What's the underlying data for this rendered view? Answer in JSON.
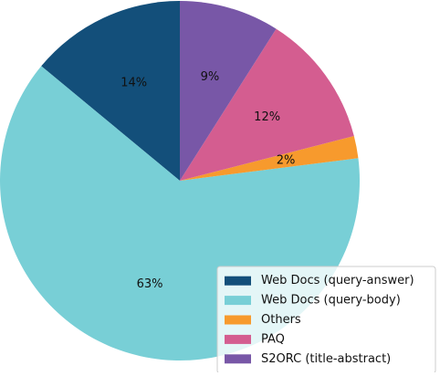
{
  "chart_data": {
    "type": "pie",
    "title": "",
    "slices": [
      {
        "label": "Web Docs (query-answer)",
        "value": 14,
        "display": "14%",
        "color": "#134f7a"
      },
      {
        "label": "Web Docs (query-body)",
        "value": 63,
        "display": "63%",
        "color": "#78cfd6"
      },
      {
        "label": "Others",
        "value": 2,
        "display": "2%",
        "color": "#f79a2d"
      },
      {
        "label": "PAQ",
        "value": 12,
        "display": "12%",
        "color": "#d45d90"
      },
      {
        "label": "S2ORC (title-abstract)",
        "value": 9,
        "display": "9%",
        "color": "#7857a7"
      }
    ],
    "start_angle_deg": 90,
    "direction": "counterclockwise",
    "legend_position": "bottom-right"
  }
}
